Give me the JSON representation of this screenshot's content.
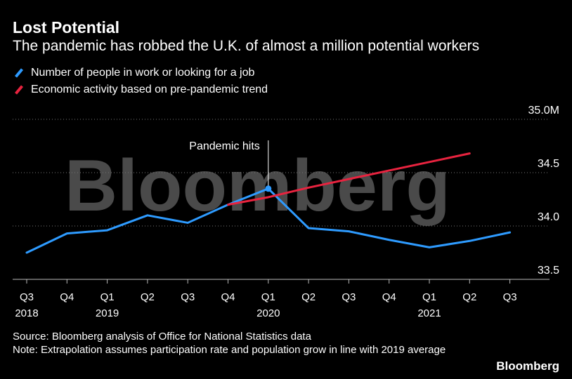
{
  "header": {
    "title": "Lost Potential",
    "subtitle": "The pandemic has robbed the U.K. of almost a million potential workers"
  },
  "legend": [
    {
      "label": "Number of people in work or looking for a job",
      "color": "#2e9bff"
    },
    {
      "label": "Economic activity based on pre-pandemic trend",
      "color": "#e8233f"
    }
  ],
  "footer": {
    "source": "Source: Bloomberg analysis of Office for National Statistics data",
    "note": "Note: Extrapolation assumes participation rate and population grow in line with 2019 average",
    "brand": "Bloomberg",
    "watermark": "Bloomberg"
  },
  "chart_data": {
    "type": "line",
    "x_quarters": [
      "Q3",
      "Q4",
      "Q1",
      "Q2",
      "Q3",
      "Q4",
      "Q1",
      "Q2",
      "Q3",
      "Q4",
      "Q1",
      "Q2",
      "Q3"
    ],
    "x_years": [
      "2018",
      "",
      "2019",
      "",
      "",
      "",
      "2020",
      "",
      "",
      "",
      "2021",
      "",
      ""
    ],
    "y_ticks": [
      "35.0M",
      "34.5",
      "34.0",
      "33.5"
    ],
    "y_tick_values": [
      35.0,
      34.5,
      34.0,
      33.5
    ],
    "ylim": [
      33.5,
      35.0
    ],
    "grid": true,
    "series": [
      {
        "name": "Number of people in work or looking for a job",
        "color": "#2e9bff",
        "values": [
          33.75,
          33.93,
          33.96,
          34.1,
          34.03,
          34.2,
          34.35,
          33.98,
          33.95,
          33.87,
          33.8,
          33.86,
          33.94
        ]
      },
      {
        "name": "Economic activity based on pre-pandemic trend",
        "color": "#e8233f",
        "start_index": 5,
        "values": [
          34.2,
          34.27,
          34.36,
          34.44,
          34.52,
          34.6,
          34.68
        ]
      }
    ],
    "annotation": {
      "label": "Pandemic hits",
      "index": 6
    }
  }
}
